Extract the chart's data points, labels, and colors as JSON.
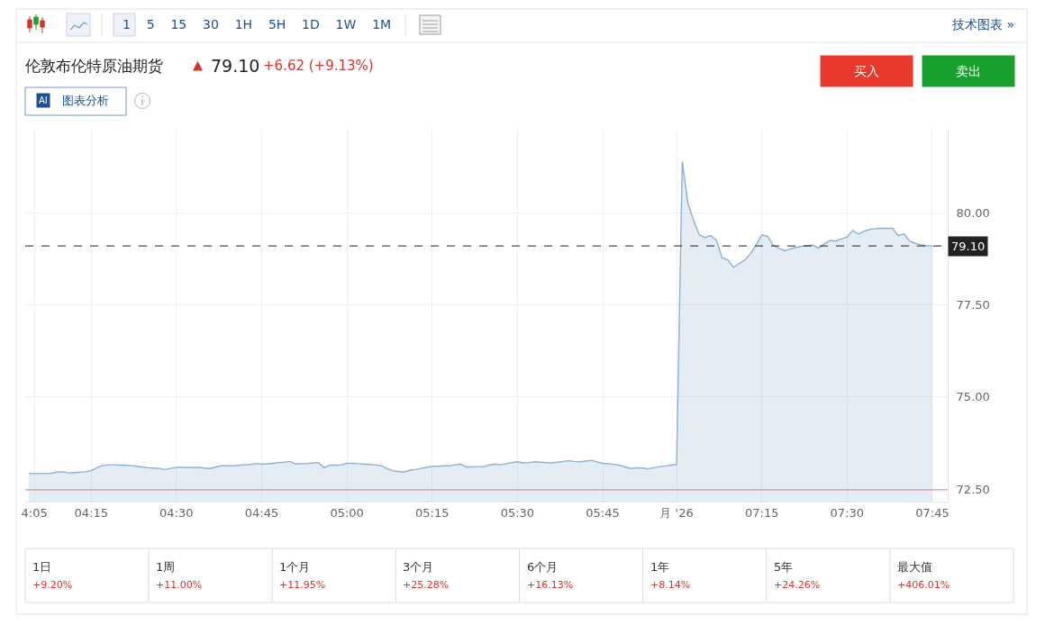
{
  "chart_data": {
    "type": "area",
    "title": "伦敦布伦特原油期货",
    "categories": [
      null,
      "4:05",
      null,
      null,
      null,
      null,
      null,
      null,
      null,
      null,
      null,
      "04:15",
      null,
      null,
      null,
      null,
      null,
      null,
      null,
      null,
      null,
      null,
      null,
      null,
      null,
      null,
      "04:30",
      null,
      null,
      null,
      null,
      null,
      null,
      null,
      null,
      null,
      null,
      null,
      null,
      null,
      null,
      "04:45",
      null,
      null,
      null,
      null,
      null,
      null,
      null,
      null,
      null,
      null,
      null,
      null,
      null,
      null,
      "05:00",
      null,
      null,
      null,
      null,
      null,
      null,
      null,
      null,
      null,
      null,
      null,
      null,
      null,
      null,
      "05:15",
      null,
      null,
      null,
      null,
      null,
      null,
      null,
      null,
      null,
      null,
      null,
      null,
      null,
      null,
      "05:30",
      null,
      null,
      null,
      null,
      null,
      null,
      null,
      null,
      null,
      null,
      null,
      null,
      null,
      null,
      "05:45",
      null,
      null,
      null,
      null,
      null,
      null,
      null,
      null,
      null,
      null,
      null,
      null,
      "月 '26",
      null,
      null,
      null,
      null,
      null,
      null,
      null,
      null,
      null,
      null,
      null,
      null,
      null,
      null,
      "07:15",
      null,
      null,
      null,
      null,
      null,
      null,
      null,
      null,
      null,
      null,
      null,
      null,
      null,
      null,
      "07:30",
      null,
      null,
      null,
      null,
      null,
      null,
      null,
      null,
      null,
      null,
      null,
      null,
      null,
      null,
      "07:45"
    ],
    "series": [
      {
        "color": "#8db0d3",
        "values": [
          72.92,
          72.92,
          72.92,
          72.92,
          72.93,
          72.96,
          72.97,
          72.94,
          72.95,
          72.96,
          72.97,
          73.0,
          73.08,
          73.14,
          73.16,
          73.16,
          73.15,
          73.15,
          73.14,
          73.12,
          73.1,
          73.08,
          73.07,
          73.06,
          73.03,
          73.06,
          73.09,
          73.09,
          73.09,
          73.09,
          73.09,
          73.07,
          73.06,
          73.1,
          73.14,
          73.13,
          73.13,
          73.15,
          73.16,
          73.17,
          73.19,
          73.18,
          73.18,
          73.2,
          73.22,
          73.23,
          73.25,
          73.18,
          73.19,
          73.19,
          73.21,
          73.22,
          73.08,
          73.15,
          73.15,
          73.16,
          73.2,
          73.2,
          73.19,
          73.18,
          73.17,
          73.16,
          73.14,
          73.06,
          73.0,
          72.98,
          72.96,
          73.01,
          73.03,
          73.06,
          73.09,
          73.12,
          73.12,
          73.13,
          73.13,
          73.16,
          73.18,
          73.1,
          73.1,
          73.11,
          73.11,
          73.15,
          73.18,
          73.16,
          73.19,
          73.22,
          73.24,
          73.21,
          73.22,
          73.24,
          73.23,
          73.22,
          73.21,
          73.23,
          73.25,
          73.27,
          73.25,
          73.24,
          73.26,
          73.28,
          73.24,
          73.2,
          73.19,
          73.17,
          73.15,
          73.1,
          73.06,
          73.08,
          73.07,
          73.05,
          73.08,
          73.11,
          73.13,
          73.15,
          73.17,
          81.39,
          80.25,
          79.79,
          79.4,
          79.33,
          79.38,
          79.26,
          78.78,
          78.72,
          78.52,
          78.62,
          78.72,
          78.89,
          79.13,
          79.4,
          79.36,
          79.12,
          79.04,
          78.97,
          79.02,
          79.06,
          79.09,
          79.11,
          79.12,
          79.04,
          79.16,
          79.25,
          79.23,
          79.29,
          79.34,
          79.52,
          79.42,
          79.5,
          79.55,
          79.57,
          79.58,
          79.58,
          79.58,
          79.38,
          79.43,
          79.23,
          79.17,
          79.13,
          79.11,
          79.1
        ]
      }
    ],
    "ylim": [
      72.16,
      82.28
    ],
    "yticks": [
      {
        "value": 72.5,
        "label": "72.50"
      },
      {
        "value": 75,
        "label": "75.00"
      },
      {
        "value": 77.5,
        "label": "77.50"
      },
      {
        "value": 80,
        "label": "80.00"
      }
    ],
    "grid": true,
    "ref_lines": [
      {
        "axis": "y",
        "value": 79.1,
        "label": "79.10",
        "line_style": "dashed",
        "color": "#222222"
      },
      {
        "axis": "y",
        "value": 72.48,
        "color": "#e57a7a"
      }
    ],
    "annotations": [
      "79.10",
      "+6.62 (+9.13%)",
      "1 5 15 30 1H 5H 1D 1W 1M",
      "技术图表 »",
      "买入",
      "卖出",
      "AI",
      "图表分析",
      "1日",
      "+9.20%",
      "1周",
      "+11.00%",
      "1个月",
      "+11.95%",
      "3个月",
      "+25.28%",
      "6个月",
      "+16.13%",
      "1年",
      "+8.14%",
      "5年",
      "+24.26%",
      "最大值",
      "+406.01%"
    ]
  }
}
